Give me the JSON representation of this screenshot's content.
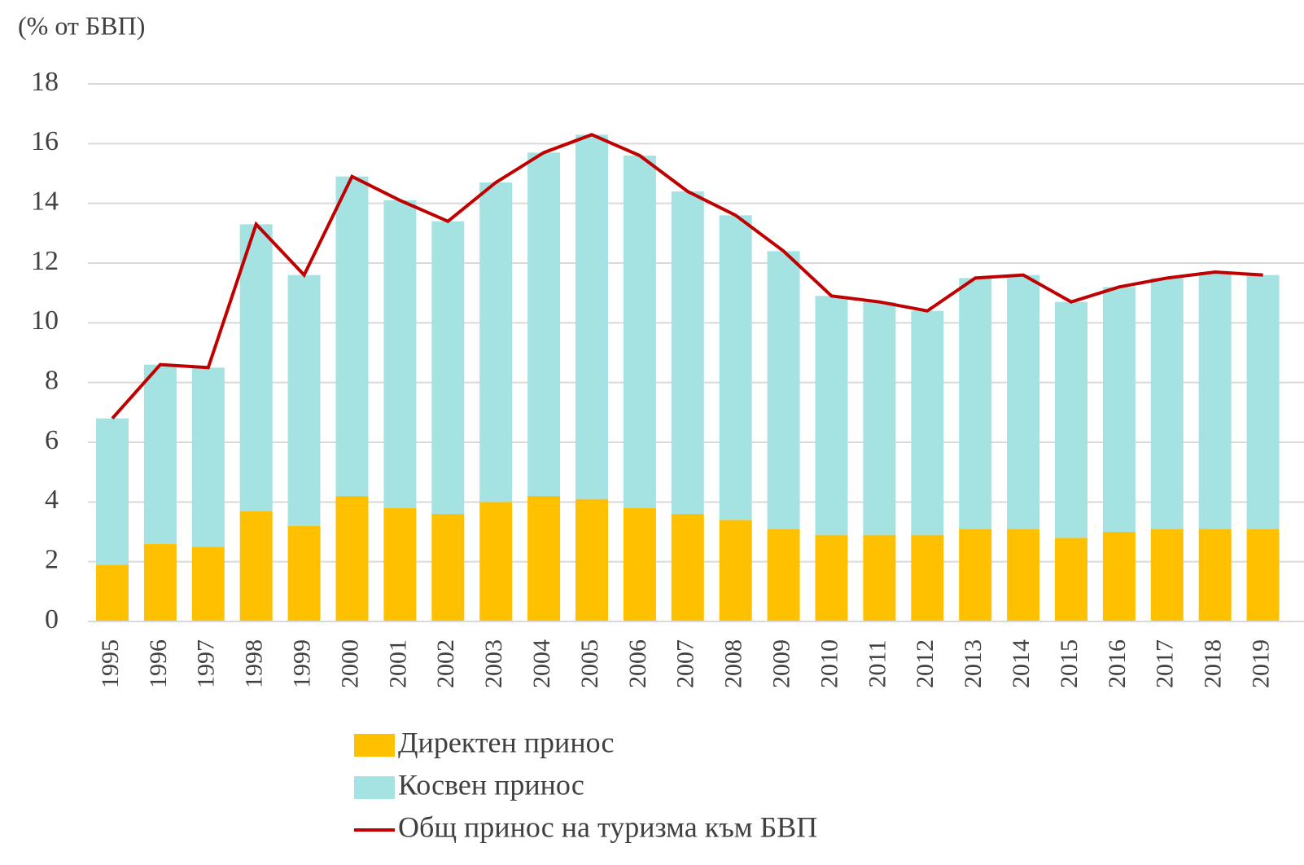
{
  "chart_data": {
    "type": "stacked_bar_line",
    "title": "(% от БВП)",
    "categories": [
      "1995",
      "1996",
      "1997",
      "1998",
      "1999",
      "2000",
      "2001",
      "2002",
      "2003",
      "2004",
      "2005",
      "2006",
      "2007",
      "2008",
      "2009",
      "2010",
      "2011",
      "2012",
      "2013",
      "2014",
      "2015",
      "2016",
      "2017",
      "2018",
      "2019"
    ],
    "series": [
      {
        "name": "Директен принос",
        "color": "#ffc000",
        "kind": "bar",
        "values": [
          1.9,
          2.6,
          2.5,
          3.7,
          3.2,
          4.2,
          3.8,
          3.6,
          4.0,
          4.2,
          4.1,
          3.8,
          3.6,
          3.4,
          3.1,
          2.9,
          2.9,
          2.9,
          3.1,
          3.1,
          2.8,
          3.0,
          3.1,
          3.1,
          3.1
        ]
      },
      {
        "name": "Косвен принос",
        "color": "#a5e3e3",
        "kind": "bar",
        "values": [
          4.9,
          6.0,
          6.0,
          9.6,
          8.4,
          10.7,
          10.3,
          9.8,
          10.7,
          11.5,
          12.2,
          11.8,
          10.8,
          10.2,
          9.3,
          8.0,
          7.8,
          7.5,
          8.4,
          8.5,
          7.9,
          8.2,
          8.4,
          8.6,
          8.5
        ]
      },
      {
        "name": "Общ принос на туризма към БВП",
        "color": "#c00000",
        "kind": "line",
        "values": [
          6.8,
          8.6,
          8.5,
          13.3,
          11.6,
          14.9,
          14.1,
          13.4,
          14.7,
          15.7,
          16.3,
          15.6,
          14.4,
          13.6,
          12.4,
          10.9,
          10.7,
          10.4,
          11.5,
          11.6,
          10.7,
          11.2,
          11.5,
          11.7,
          11.6
        ]
      }
    ],
    "ylim": [
      0,
      18
    ],
    "yticks": [
      0,
      2,
      4,
      6,
      8,
      10,
      12,
      14,
      16,
      18
    ],
    "grid": true
  }
}
